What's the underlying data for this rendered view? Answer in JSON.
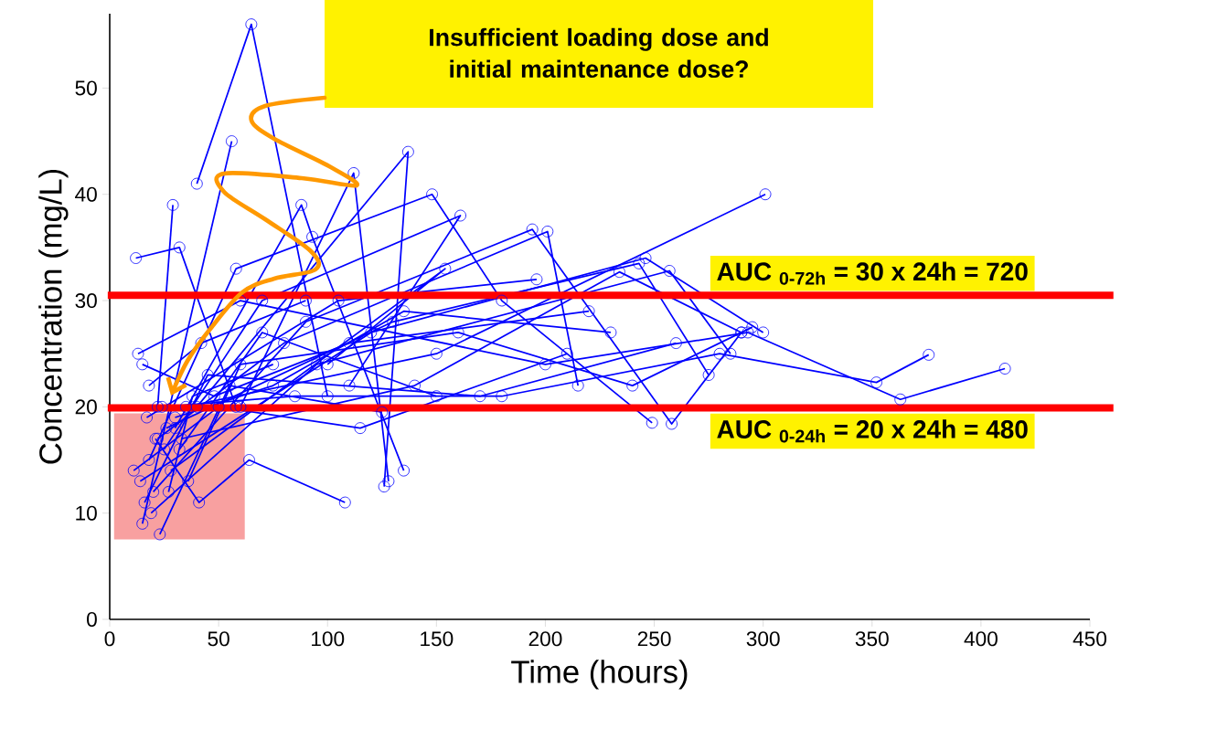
{
  "chart_data": {
    "type": "line",
    "xlabel": "Time (hours)",
    "ylabel": "Concentration (mg/L)",
    "xlim": [
      0,
      450
    ],
    "ylim": [
      0,
      57
    ],
    "xticks": [
      0,
      50,
      100,
      150,
      200,
      250,
      300,
      350,
      400,
      450
    ],
    "yticks": [
      0,
      10,
      20,
      30,
      40,
      50
    ],
    "marker": "circle",
    "ref_lines": [
      {
        "axis": "y",
        "value": 30.5,
        "label": "AUC $_{0-72h}$ = 30 x 24h = 720",
        "color": "#ff0000"
      },
      {
        "axis": "y",
        "value": 19.9,
        "label": "AUC $_{0-24h}$ = 20 x 24h = 480",
        "color": "#ff0000"
      }
    ],
    "bands": [
      {
        "axis": "x",
        "from": 2,
        "to": 62,
        "color": "#f8a0a0"
      }
    ],
    "annotations": [
      "Insufficient loading dose and initial maintenance dose?"
    ],
    "series": [
      {
        "color": "#0000ff",
        "x": [
          40,
          65,
          100
        ],
        "values": [
          41,
          56,
          21
        ]
      },
      {
        "color": "#0000ff",
        "x": [
          12,
          32,
          58
        ],
        "values": [
          34,
          35,
          20
        ]
      },
      {
        "color": "#0000ff",
        "x": [
          29,
          22
        ],
        "values": [
          39,
          20
        ]
      },
      {
        "color": "#0000ff",
        "x": [
          15,
          56
        ],
        "values": [
          9,
          45
        ]
      },
      {
        "color": "#0000ff",
        "x": [
          60,
          112,
          128
        ],
        "values": [
          20,
          42,
          13
        ]
      },
      {
        "color": "#0000ff",
        "x": [
          40,
          137,
          126
        ],
        "values": [
          20,
          44,
          12.5
        ]
      },
      {
        "color": "#0000ff",
        "x": [
          30,
          88,
          93,
          135
        ],
        "values": [
          18,
          39,
          36,
          14
        ]
      },
      {
        "color": "#0000ff",
        "x": [
          18,
          58,
          148,
          180,
          249
        ],
        "values": [
          15,
          33,
          40,
          30,
          18.5
        ]
      },
      {
        "color": "#0000ff",
        "x": [
          25,
          70,
          161,
          110
        ],
        "values": [
          16,
          30,
          38,
          22
        ]
      },
      {
        "color": "#0000ff",
        "x": [
          20,
          90,
          194,
          258,
          290
        ],
        "values": [
          12,
          28,
          36.7,
          18.4,
          27
        ]
      },
      {
        "color": "#0000ff",
        "x": [
          22,
          80,
          201,
          215
        ],
        "values": [
          17,
          26,
          36.5,
          22
        ]
      },
      {
        "color": "#0000ff",
        "x": [
          17,
          105,
          196
        ],
        "values": [
          19,
          30,
          32
        ]
      },
      {
        "color": "#0000ff",
        "x": [
          28,
          154,
          100
        ],
        "values": [
          14,
          33,
          24
        ]
      },
      {
        "color": "#0000ff",
        "x": [
          35,
          150,
          301
        ],
        "values": [
          20,
          25,
          40
        ]
      },
      {
        "color": "#0000ff",
        "x": [
          14,
          120,
          246,
          300
        ],
        "values": [
          13,
          27,
          34,
          27
        ]
      },
      {
        "color": "#0000ff",
        "x": [
          26,
          130,
          243,
          275
        ],
        "values": [
          18,
          28,
          33.5,
          23
        ]
      },
      {
        "color": "#0000ff",
        "x": [
          19,
          95,
          257,
          285
        ],
        "values": [
          10,
          24,
          32.8,
          25
        ]
      },
      {
        "color": "#0000ff",
        "x": [
          33,
          140,
          234,
          290
        ],
        "values": [
          17,
          22,
          32.7,
          27
        ]
      },
      {
        "color": "#0000ff",
        "x": [
          21,
          41,
          64,
          108
        ],
        "values": [
          17,
          11,
          15,
          11
        ]
      },
      {
        "color": "#0000ff",
        "x": [
          13,
          60,
          200,
          293,
          363,
          411
        ],
        "values": [
          25,
          30,
          24,
          27,
          20.7,
          23.6
        ]
      },
      {
        "color": "#0000ff",
        "x": [
          24,
          85,
          180,
          280,
          352,
          376
        ],
        "values": [
          20,
          21,
          21,
          25,
          22.3,
          24.9
        ]
      },
      {
        "color": "#0000ff",
        "x": [
          16,
          45,
          170,
          260
        ],
        "values": [
          11,
          23,
          21,
          26
        ]
      },
      {
        "color": "#0000ff",
        "x": [
          30,
          75,
          135,
          230
        ],
        "values": [
          19,
          22,
          29,
          27
        ]
      },
      {
        "color": "#0000ff",
        "x": [
          11,
          50,
          115,
          210
        ],
        "values": [
          14,
          20,
          18,
          25
        ]
      },
      {
        "color": "#0000ff",
        "x": [
          23,
          55,
          125
        ],
        "values": [
          8,
          22,
          19.5
        ]
      },
      {
        "color": "#0000ff",
        "x": [
          36,
          60,
          160,
          240,
          295
        ],
        "values": [
          13,
          24,
          27,
          22,
          27.5
        ]
      },
      {
        "color": "#0000ff",
        "x": [
          18,
          42,
          90
        ],
        "values": [
          22,
          26,
          30
        ]
      },
      {
        "color": "#0000ff",
        "x": [
          27,
          38,
          75
        ],
        "values": [
          12,
          21,
          24
        ]
      },
      {
        "color": "#0000ff",
        "x": [
          15,
          48,
          110,
          220
        ],
        "values": [
          24,
          21,
          26,
          29
        ]
      },
      {
        "color": "#0000ff",
        "x": [
          32,
          70,
          150
        ],
        "values": [
          16,
          27,
          21
        ]
      }
    ]
  }
}
